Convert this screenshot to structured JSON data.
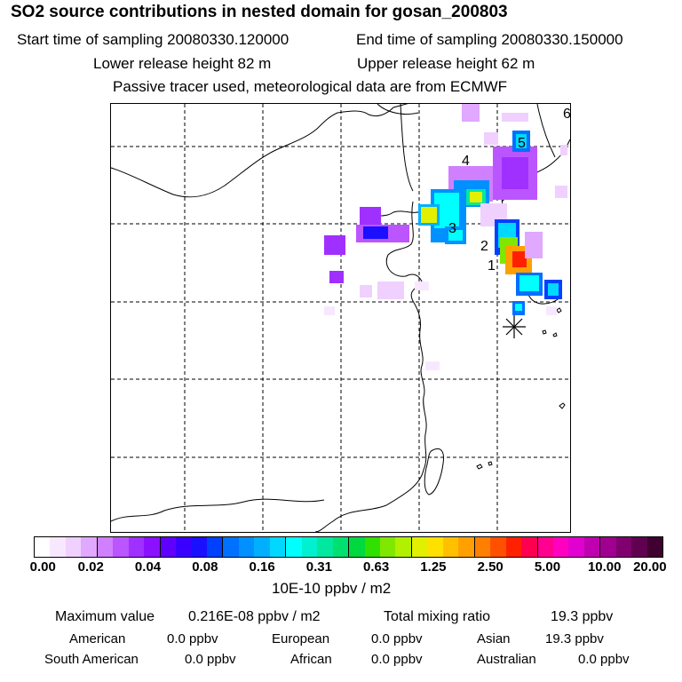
{
  "header": {
    "title": "SO2 source contributions in nested domain for gosan_200803",
    "start_time": "Start time of sampling 20080330.120000",
    "end_time": "End time of sampling 20080330.150000",
    "lower_height": "Lower release height   82 m",
    "upper_height": "Upper release height   62 m",
    "tracer_note": "Passive tracer used, meteorological data are from ECMWF"
  },
  "map": {
    "markers": [
      "1",
      "2",
      "3",
      "4",
      "5",
      "6"
    ],
    "receptor_symbol": "✳"
  },
  "colorbar": {
    "ticks": [
      "0.00",
      "0.02",
      "0.04",
      "0.08",
      "0.16",
      "0.31",
      "0.63",
      "1.25",
      "2.50",
      "5.00",
      "10.00",
      "20.00"
    ],
    "unit": "10E-10 ppbv / m2",
    "colors": [
      "#ffffff",
      "#f8e8ff",
      "#f0d0ff",
      "#e0a8ff",
      "#d080ff",
      "#bb55ff",
      "#a030ff",
      "#8a10ff",
      "#5f00ff",
      "#3a00ff",
      "#1a10ff",
      "#0040ff",
      "#0070ff",
      "#0090ff",
      "#00b0ff",
      "#00d8ff",
      "#00ffff",
      "#00f0d0",
      "#00e8a0",
      "#00e070",
      "#00d840",
      "#30e000",
      "#80e800",
      "#b0f000",
      "#e0f000",
      "#ffe000",
      "#ffc000",
      "#ffa000",
      "#ff8000",
      "#ff5000",
      "#ff2000",
      "#ff0050",
      "#ff0090",
      "#ff00c0",
      "#e000d0",
      "#c000b0",
      "#a00090",
      "#800070",
      "#600050",
      "#400030"
    ]
  },
  "summary": {
    "max_label": "Maximum value",
    "max_value": "0.216E-08 ppbv / m2",
    "total_label": "Total mixing ratio",
    "total_value": "19.3 ppbv",
    "american": "American",
    "american_val": "0.0 ppbv",
    "european": "European",
    "european_val": "0.0 ppbv",
    "asian": "Asian",
    "asian_val": "19.3 ppbv",
    "south_american": "South American",
    "south_american_val": "0.0 ppbv",
    "african": "African",
    "african_val": "0.0 ppbv",
    "australian": "Australian",
    "australian_val": "0.0 ppbv"
  }
}
